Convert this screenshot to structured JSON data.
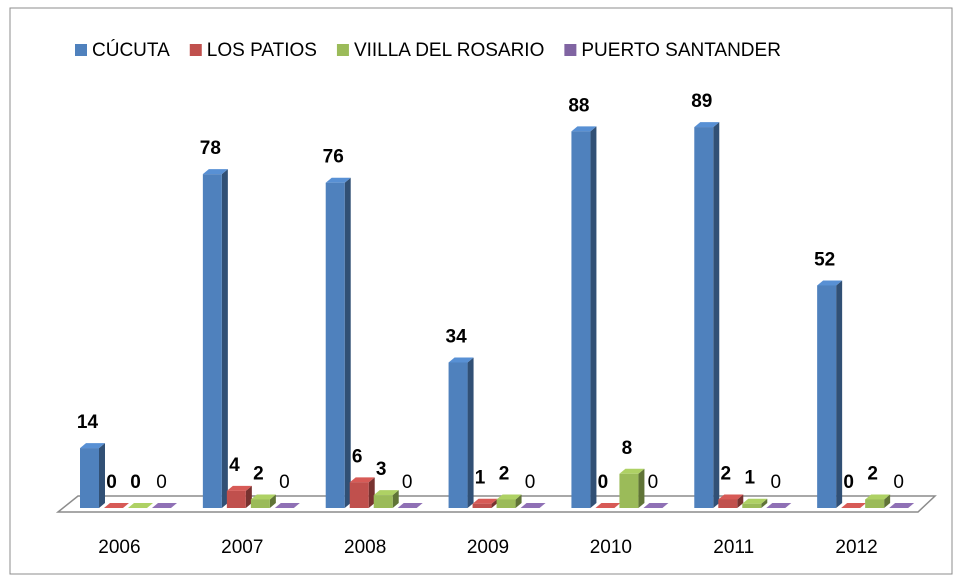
{
  "chart_data": {
    "type": "bar3d",
    "categories": [
      "2006",
      "2007",
      "2008",
      "2009",
      "2010",
      "2011",
      "2012"
    ],
    "series": [
      {
        "name": "CÚCUTA",
        "color": "#4f81bd",
        "values": [
          14,
          78,
          76,
          34,
          88,
          89,
          52
        ]
      },
      {
        "name": "LOS PATIOS",
        "color": "#c0504d",
        "values": [
          0,
          4,
          6,
          1,
          0,
          2,
          0
        ]
      },
      {
        "name": "VIILLA DEL ROSARIO",
        "color": "#9bbb59",
        "values": [
          0,
          2,
          3,
          2,
          8,
          1,
          2
        ]
      },
      {
        "name": "PUERTO SANTANDER",
        "color": "#8064a2",
        "values": [
          0,
          0,
          0,
          0,
          0,
          0,
          0
        ]
      }
    ],
    "ylim": [
      0,
      100
    ],
    "legend": "top"
  }
}
